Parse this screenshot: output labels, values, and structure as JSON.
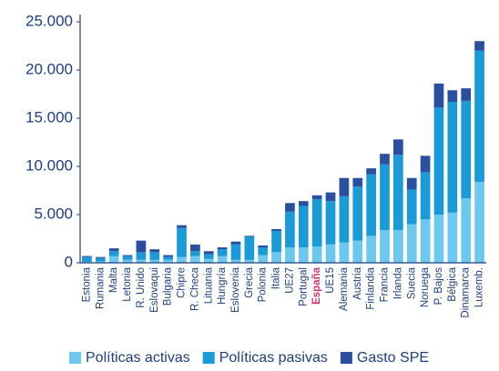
{
  "chart_data": {
    "type": "stacked-bar",
    "categories": [
      "Estonia",
      "Rumania",
      "Malta",
      "Letonia",
      "R. Unido",
      "Eslovaqui",
      "Bulgaria",
      "Chipre",
      "R. Checa",
      "Lituania",
      "Hungría",
      "Eslovenia",
      "Grecia",
      "Polonia",
      "Italia",
      "UE27",
      "Portugal",
      "España",
      "UE15",
      "Alemania",
      "Austria",
      "Finlandia",
      "Francia",
      "Irlanda",
      "Suecia",
      "Noruega",
      "P. Bajos",
      "Bélgica",
      "Dinamarca",
      "Luxemb."
    ],
    "highlight_index": 17,
    "highlight_color": "#d6336c",
    "series": [
      {
        "name": "Políticas activas",
        "color": "#6cc8ee",
        "values": [
          100,
          150,
          700,
          300,
          300,
          300,
          300,
          600,
          700,
          400,
          700,
          300,
          300,
          800,
          1100,
          1600,
          1600,
          1700,
          1900,
          2100,
          2300,
          2800,
          3400,
          3400,
          4000,
          4500,
          5000,
          5200,
          6700,
          8400
        ]
      },
      {
        "name": "Políticas pasivas",
        "color": "#1a9ad6",
        "values": [
          500,
          350,
          500,
          400,
          800,
          800,
          300,
          3000,
          500,
          500,
          700,
          1600,
          2400,
          800,
          2200,
          3700,
          4300,
          4900,
          4500,
          4800,
          5600,
          6400,
          6800,
          7800,
          3600,
          4900,
          11100,
          11500,
          10100,
          13600
        ]
      },
      {
        "name": "Gasto SPE",
        "color": "#2a4f9e",
        "values": [
          100,
          100,
          300,
          100,
          1200,
          300,
          200,
          300,
          700,
          300,
          200,
          300,
          100,
          200,
          200,
          900,
          500,
          400,
          900,
          1900,
          900,
          600,
          1100,
          1600,
          1200,
          1700,
          2500,
          1200,
          1300,
          1000
        ]
      }
    ],
    "ylim": [
      0,
      25000
    ],
    "yticks": [
      0,
      {
        "value": 5000,
        "label": "5.000"
      },
      {
        "value": 10000,
        "label": "10.000"
      },
      {
        "value": 15000,
        "label": "15.000"
      },
      {
        "value": 20000,
        "label": "20.000"
      },
      {
        "value": 25000,
        "label": "25.000"
      }
    ],
    "legend": "bottom"
  }
}
